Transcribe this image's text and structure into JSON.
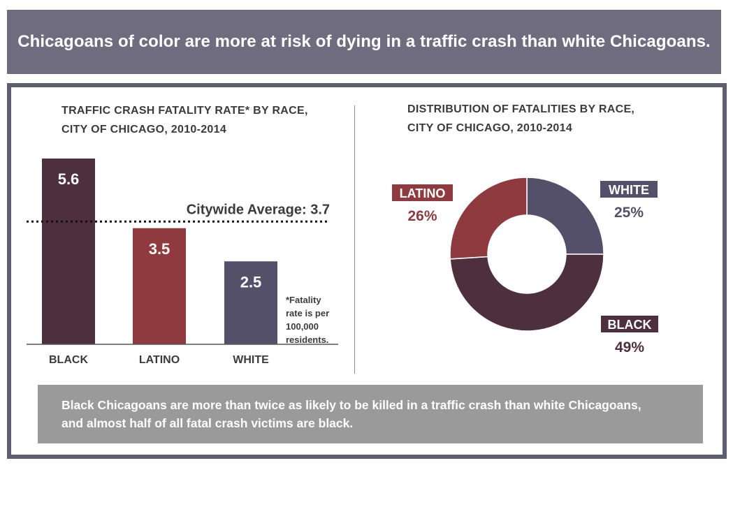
{
  "header": {
    "title": "Chicagoans of color are more at risk of dying in a traffic crash than white Chicagoans."
  },
  "footer": {
    "lines": [
      "Black Chicagoans are more than twice as likely to be killed in a traffic crash than white Chicagoans,",
      "and almost half of all fatal crash victims are black."
    ]
  },
  "chart_data": [
    {
      "type": "bar",
      "title_lines": [
        "TRAFFIC  CRASH  FATALITY  RATE*  BY  RACE,",
        "CITY OF CHICAGO, 2010-2014"
      ],
      "categories": [
        "BLACK",
        "LATINO",
        "WHITE"
      ],
      "values": [
        5.6,
        3.5,
        2.5
      ],
      "value_labels": [
        "5.6",
        "3.5",
        "2.5"
      ],
      "colors": [
        "#4e2f3e",
        "#8e3a3f",
        "#55506a"
      ],
      "ylim": [
        0,
        5.6
      ],
      "reference_line": {
        "value": 3.7,
        "label": "Citywide Average:  3.7",
        "style": "dotted"
      },
      "footnote": [
        "*Fatality",
        "rate is per",
        "100,000",
        "residents."
      ],
      "grid": false
    },
    {
      "type": "pie",
      "style": "donut",
      "title_lines": [
        "DISTRIBUTION  OF  FATALITIES  BY  RACE,",
        "CITY OF CHICAGO, 2010-2014"
      ],
      "slices": [
        {
          "label": "WHITE",
          "percent_label": "25%",
          "value": 25,
          "color": "#55506a"
        },
        {
          "label": "BLACK",
          "percent_label": "49%",
          "value": 49,
          "color": "#4e2f3e"
        },
        {
          "label": "LATINO",
          "percent_label": "26%",
          "value": 26,
          "color": "#8e3a3f"
        }
      ]
    }
  ]
}
